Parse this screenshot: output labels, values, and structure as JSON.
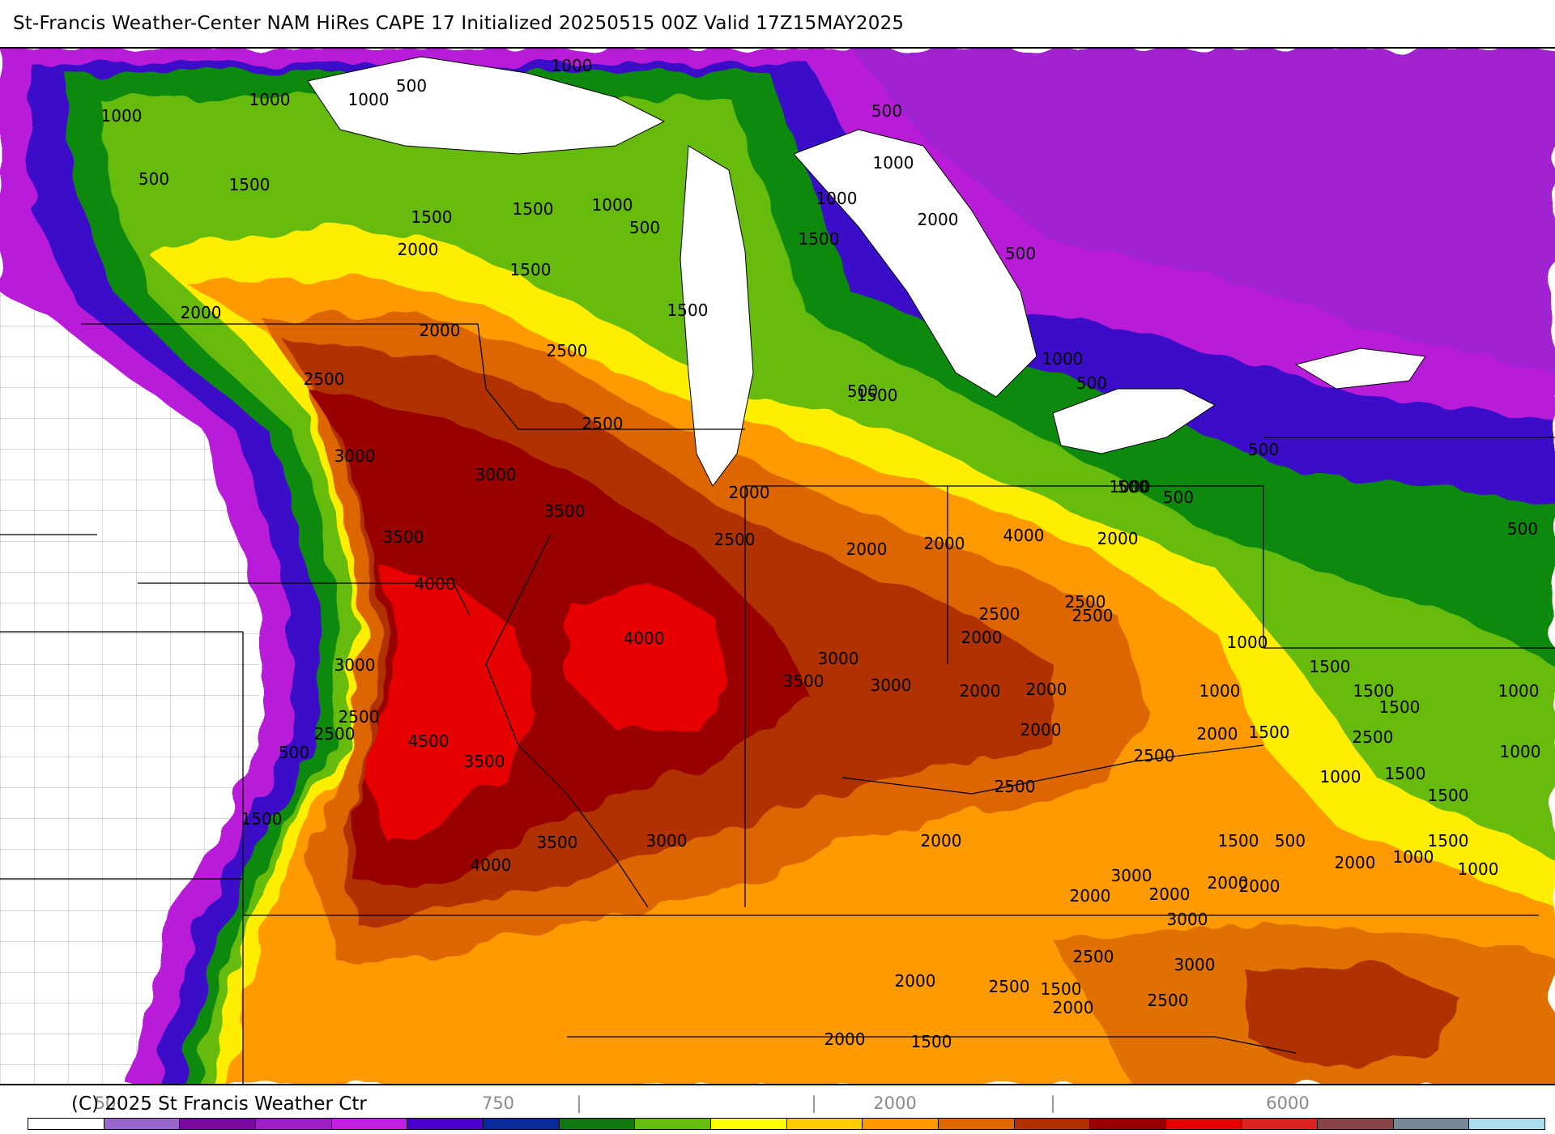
{
  "title": "St-Francis Weather-Center NAM HiRes CAPE  17 Initialized 20250515 00Z Valid 17Z15MAY2025",
  "copyright": "(C) 2025 St Francis Weather Ctr",
  "colors": {
    "background": "#ffffff",
    "land_none": "#ffffff",
    "lake": "#ffffff",
    "border_line": "#000000",
    "county_line": "#9a9a9a"
  },
  "legend": {
    "tick_labels": [
      "50",
      "750",
      "|",
      "|",
      "2000",
      "|",
      "6000"
    ],
    "swatches": [
      "#ffffff",
      "#9966cc",
      "#7a0a9e",
      "#9c1fc2",
      "#c020e0",
      "#4b00d0",
      "#0a2c9a",
      "#117711",
      "#66bb11",
      "#ffff00",
      "#ffcc00",
      "#ff9900",
      "#e06800",
      "#b03000",
      "#990000",
      "#e60000",
      "#dd2222",
      "#884444",
      "#778899",
      "#aaddee"
    ]
  },
  "contour_labels": [
    {
      "text": "1000"
    },
    {
      "text": "1000"
    },
    {
      "text": "1000"
    },
    {
      "text": "500"
    },
    {
      "text": "1000"
    },
    {
      "text": "500"
    },
    {
      "text": "500"
    },
    {
      "text": "1500"
    },
    {
      "text": "1500"
    },
    {
      "text": "1000"
    },
    {
      "text": "500"
    },
    {
      "text": "1500"
    },
    {
      "text": "1000"
    },
    {
      "text": "2000"
    },
    {
      "text": "1500"
    },
    {
      "text": "1000"
    },
    {
      "text": "1500"
    },
    {
      "text": "2000"
    },
    {
      "text": "2000"
    },
    {
      "text": "1500"
    },
    {
      "text": "500"
    },
    {
      "text": "2000"
    },
    {
      "text": "2500"
    },
    {
      "text": "2500"
    },
    {
      "text": "1000"
    },
    {
      "text": "500"
    },
    {
      "text": "1500"
    },
    {
      "text": "2500"
    },
    {
      "text": "500"
    },
    {
      "text": "3000"
    },
    {
      "text": "3000"
    },
    {
      "text": "3500"
    },
    {
      "text": "3500"
    },
    {
      "text": "2000"
    },
    {
      "text": "2500"
    },
    {
      "text": "2000"
    },
    {
      "text": "4000"
    },
    {
      "text": "4000"
    },
    {
      "text": "2000"
    },
    {
      "text": "2500"
    },
    {
      "text": "3000"
    },
    {
      "text": "3500"
    },
    {
      "text": "3000"
    },
    {
      "text": "2000"
    },
    {
      "text": "2500"
    },
    {
      "text": "2500"
    },
    {
      "text": "3000"
    },
    {
      "text": "4000"
    },
    {
      "text": "4500"
    },
    {
      "text": "500"
    },
    {
      "text": "2500"
    },
    {
      "text": "2500"
    },
    {
      "text": "2000"
    },
    {
      "text": "3500"
    },
    {
      "text": "2000"
    },
    {
      "text": "3500"
    },
    {
      "text": "3000"
    },
    {
      "text": "2000"
    },
    {
      "text": "4000"
    },
    {
      "text": "2000"
    },
    {
      "text": "1500"
    },
    {
      "text": "2500"
    },
    {
      "text": "2500"
    },
    {
      "text": "2500"
    },
    {
      "text": "2000"
    },
    {
      "text": "2000"
    },
    {
      "text": "2000"
    },
    {
      "text": "3000"
    },
    {
      "text": "3000"
    },
    {
      "text": "2000"
    },
    {
      "text": "2000"
    },
    {
      "text": "1500"
    },
    {
      "text": "1500"
    },
    {
      "text": "2000"
    },
    {
      "text": "500"
    },
    {
      "text": "1500"
    },
    {
      "text": "1000"
    },
    {
      "text": "1500"
    },
    {
      "text": "1500"
    },
    {
      "text": "1000"
    },
    {
      "text": "1500"
    },
    {
      "text": "1000"
    },
    {
      "text": "1000"
    },
    {
      "text": "1000"
    },
    {
      "text": "1500"
    },
    {
      "text": "1000"
    },
    {
      "text": "1000"
    },
    {
      "text": "1500"
    },
    {
      "text": "500"
    },
    {
      "text": "500"
    },
    {
      "text": "500"
    },
    {
      "text": "1000"
    },
    {
      "text": "500"
    },
    {
      "text": "2000"
    },
    {
      "text": "2500"
    },
    {
      "text": "3000"
    },
    {
      "text": "2500"
    },
    {
      "text": "2000"
    },
    {
      "text": "1500"
    },
    {
      "text": "2000"
    },
    {
      "text": "2000"
    },
    {
      "text": "2500"
    },
    {
      "text": "1500"
    }
  ]
}
